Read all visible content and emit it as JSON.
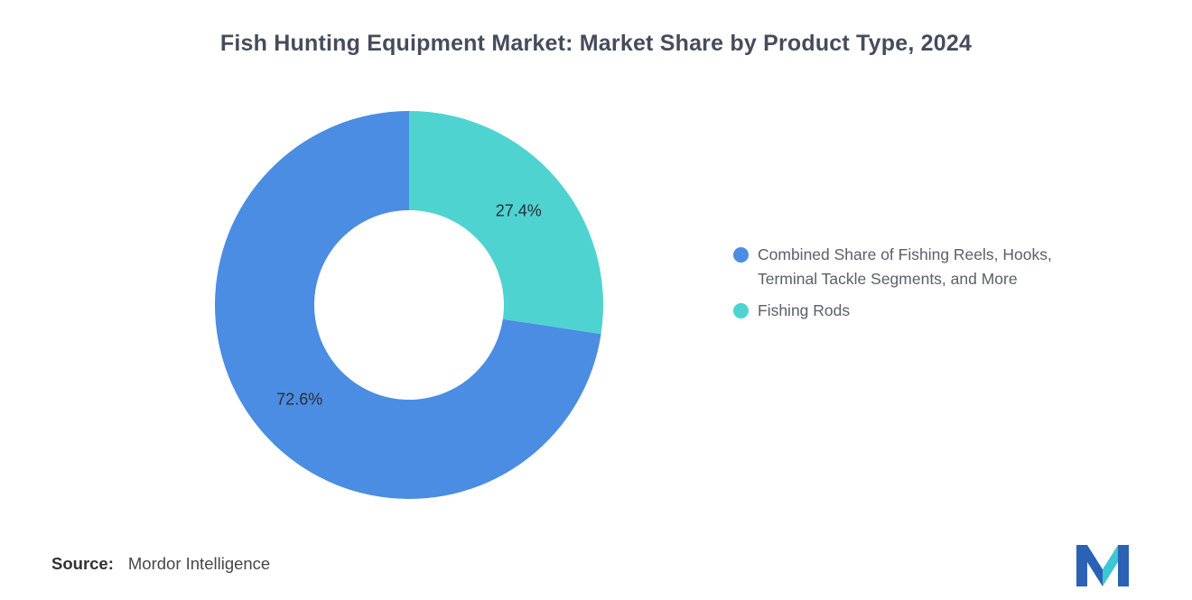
{
  "title": "Fish Hunting Equipment Market: Market Share by Product Type, 2024",
  "source": {
    "label": "Source:",
    "value": "Mordor Intelligence"
  },
  "chart_data": {
    "type": "pie",
    "subtype": "donut",
    "title": "Fish Hunting Equipment Market: Market Share by Product Type, 2024",
    "inner_radius_ratio": 0.49,
    "rotation": "clockwise-from-top",
    "legend_position": "right",
    "categories": [
      "Combined Share of Fishing Reels, Hooks, Terminal Tackle Segments, and More",
      "Fishing Rods"
    ],
    "values": [
      72.6,
      27.4
    ],
    "slices": [
      {
        "name": "Fishing Rods",
        "value": 27.4,
        "label": "27.4%",
        "color": "#4ED3D1"
      },
      {
        "name": "Combined Share of Fishing Reels, Hooks, Terminal Tackle Segments, and More",
        "value": 72.6,
        "label": "72.6%",
        "color": "#4A8DE2"
      }
    ],
    "legend": [
      {
        "name": "Combined Share of Fishing Reels, Hooks, Terminal Tackle Segments, and More",
        "color": "#4A8DE2",
        "lines": [
          "Combined Share of Fishing Reels, Hooks,",
          "Terminal Tackle Segments, and More"
        ]
      },
      {
        "name": "Fishing Rods",
        "color": "#4ED3D1",
        "lines": [
          "Fishing Rods"
        ]
      }
    ]
  },
  "colors": {
    "background": "#FFFFFF",
    "title_text": "#454C5C",
    "legend_text": "#5A5F6A",
    "slice_label_text": "#2B2E34"
  },
  "logo": {
    "name": "Mordor Intelligence logo",
    "blue": "#2B62B5",
    "teal": "#3BC7D3"
  }
}
